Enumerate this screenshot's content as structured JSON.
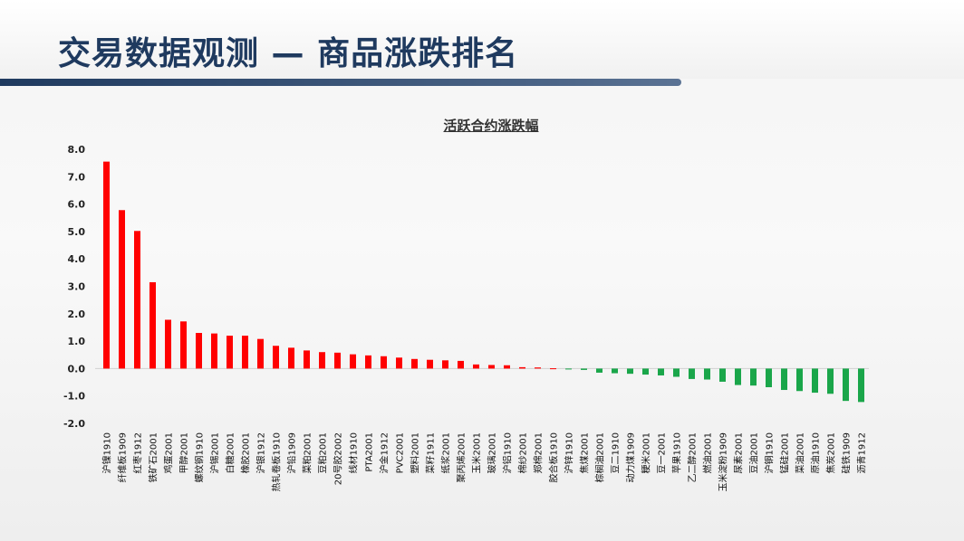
{
  "header": {
    "title": "交易数据观测 — 商品涨跌排名"
  },
  "colors": {
    "up": "#ff0000",
    "down": "#1aa64a",
    "title": "#1f3a5f"
  },
  "chart_data": {
    "type": "bar",
    "title": "活跃合约涨跌幅",
    "xlabel": "",
    "ylabel": "",
    "ylim": [
      -2.0,
      8.0
    ],
    "yticks": [
      "8.0",
      "7.0",
      "6.0",
      "5.0",
      "4.0",
      "3.0",
      "2.0",
      "1.0",
      "0.0",
      "-1.0",
      "-2.0"
    ],
    "grid": false,
    "categories": [
      "沪镍1910",
      "纤维板1909",
      "红枣1912",
      "铁矿石2001",
      "鸡蛋2001",
      "甲醇2001",
      "螺纹钢1910",
      "沪锡2001",
      "白糖2001",
      "橡胶2001",
      "沪银1912",
      "热轧卷板1910",
      "沪铅1909",
      "菜粕2001",
      "豆粕2001",
      "20号胶2002",
      "线材1910",
      "PTA2001",
      "沪金1912",
      "PVC2001",
      "塑料2001",
      "菜籽1911",
      "纸浆2001",
      "聚丙烯2001",
      "玉米2001",
      "玻璃2001",
      "沪铝1910",
      "棉纱2001",
      "郑棉2001",
      "胶合板1910",
      "沪锌1910",
      "焦煤2001",
      "棕榈油2001",
      "豆二1910",
      "动力煤1909",
      "粳米2001",
      "豆一2001",
      "苹果1910",
      "乙二醇2001",
      "燃油2001",
      "玉米淀粉1909",
      "尿素2001",
      "豆油2001",
      "沪铜1910",
      "锰硅2001",
      "菜油2001",
      "原油1910",
      "焦炭2001",
      "硅铁1909",
      "沥青1912"
    ],
    "values": [
      7.55,
      5.78,
      5.02,
      3.15,
      1.78,
      1.72,
      1.3,
      1.28,
      1.2,
      1.2,
      1.08,
      0.83,
      0.76,
      0.66,
      0.6,
      0.58,
      0.52,
      0.48,
      0.45,
      0.4,
      0.35,
      0.32,
      0.3,
      0.28,
      0.15,
      0.13,
      0.12,
      0.05,
      0.04,
      0.01,
      -0.03,
      -0.05,
      -0.15,
      -0.17,
      -0.19,
      -0.22,
      -0.25,
      -0.3,
      -0.38,
      -0.4,
      -0.48,
      -0.6,
      -0.62,
      -0.68,
      -0.78,
      -0.82,
      -0.88,
      -0.92,
      -1.18,
      -1.22
    ]
  }
}
